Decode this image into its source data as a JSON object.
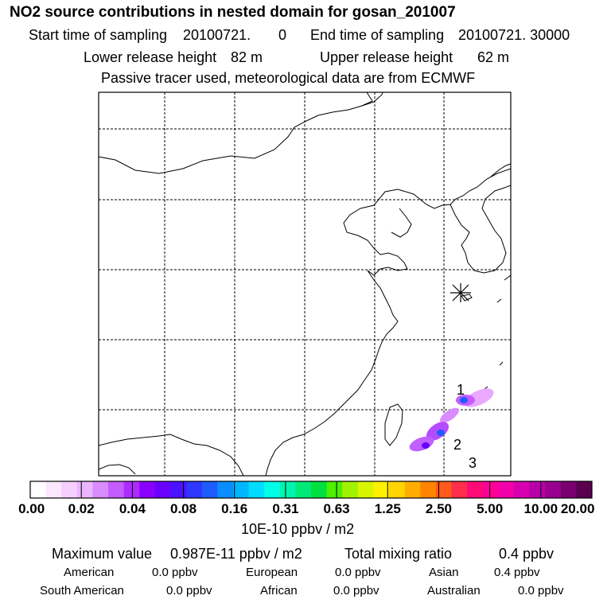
{
  "header": {
    "title": "NO2 source contributions in nested domain for gosan_201007",
    "start_label": "Start time of sampling",
    "start_value": "20100721.",
    "start_hour": "0",
    "end_label": "End time of sampling",
    "end_value": "20100721. 30000",
    "lower_label": "Lower release height",
    "lower_value": "82 m",
    "upper_label": "Upper release height",
    "upper_value": "62 m",
    "note": "Passive tracer used, meteorological data are from ECMWF"
  },
  "map": {
    "receptor_marker": "asterisk-icon",
    "labels": [
      "1",
      "2",
      "3"
    ]
  },
  "colorbar": {
    "ticks": [
      "0.00",
      "0.02",
      "0.04",
      "0.08",
      "0.16",
      "0.31",
      "0.63",
      "1.25",
      "2.50",
      "5.00",
      "10.00",
      "20.00"
    ],
    "colors": [
      "#ffffff",
      "#fbe8ff",
      "#f5d0ff",
      "#eab5ff",
      "#d98cff",
      "#c45cff",
      "#ad2bff",
      "#8a00ff",
      "#6a00ff",
      "#4a12ff",
      "#2f36ff",
      "#1f5cff",
      "#0a8dff",
      "#00b6ff",
      "#00dcff",
      "#00ffe6",
      "#00f5b0",
      "#00ea7a",
      "#00e040",
      "#4cf000",
      "#a0f200",
      "#d8f500",
      "#fff000",
      "#ffd400",
      "#ffae00",
      "#ff8400",
      "#ff5a1a",
      "#ff2e4a",
      "#ff0a78",
      "#ff0096",
      "#f200aa",
      "#d600b0",
      "#b800a8",
      "#9a0090",
      "#7a0070",
      "#5a0050"
    ],
    "unit": "10E-10 ppbv / m2"
  },
  "stats": {
    "max_label": "Maximum value",
    "max_value": "0.987E-11 ppbv / m2",
    "total_label": "Total mixing ratio",
    "total_value": "0.4 ppbv",
    "regions": [
      {
        "name": "American",
        "value": "0.0 ppbv"
      },
      {
        "name": "European",
        "value": "0.0 ppbv"
      },
      {
        "name": "Asian",
        "value": "0.4 ppbv"
      },
      {
        "name": "South American",
        "value": "0.0 ppbv"
      },
      {
        "name": "African",
        "value": "0.0 ppbv"
      },
      {
        "name": "Australian",
        "value": "0.0 ppbv"
      }
    ]
  }
}
